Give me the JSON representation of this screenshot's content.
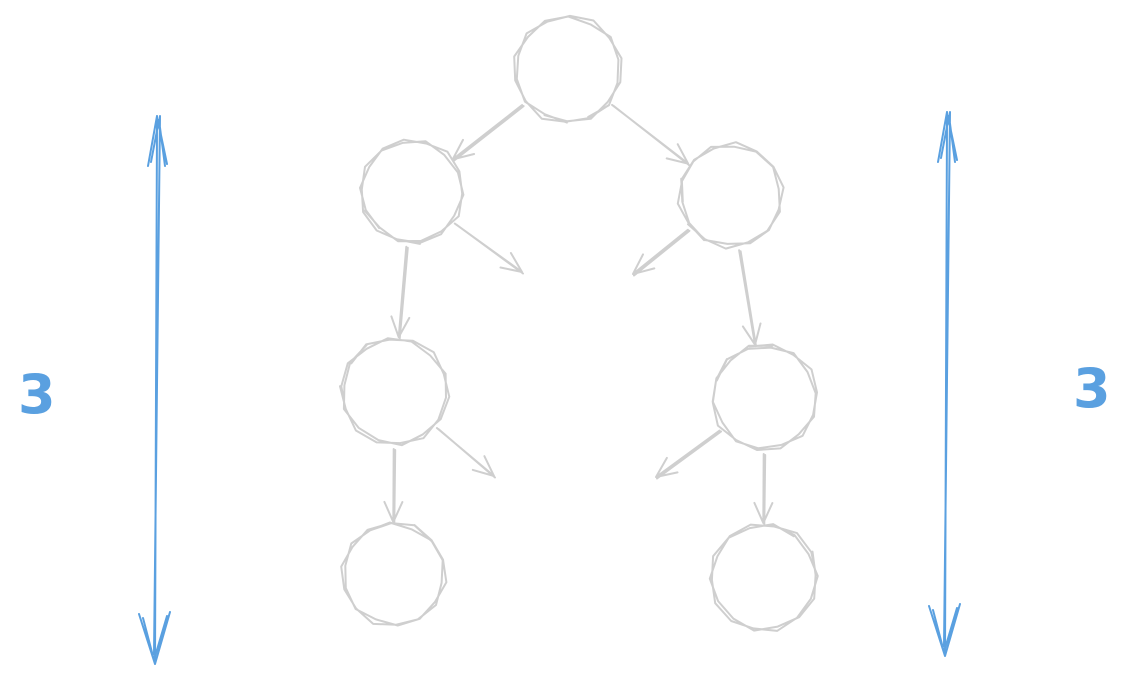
{
  "diagram": {
    "kind": "binary-tree-sketch",
    "style": "hand-drawn",
    "colors": {
      "tree": "#cfcfcf",
      "measure": "#5aa0e0",
      "background": "#ffffff"
    },
    "nodes": [
      {
        "id": "root"
      },
      {
        "id": "left-1"
      },
      {
        "id": "right-1"
      },
      {
        "id": "left-2"
      },
      {
        "id": "right-2"
      },
      {
        "id": "left-3"
      },
      {
        "id": "right-3"
      }
    ],
    "edges": [
      {
        "from": "root",
        "to": "left-1"
      },
      {
        "from": "root",
        "to": "right-1"
      },
      {
        "from": "left-1",
        "to": "left-2"
      },
      {
        "from": "left-2",
        "to": "left-3"
      },
      {
        "from": "right-1",
        "to": "right-2"
      },
      {
        "from": "right-2",
        "to": "right-3"
      }
    ],
    "dangling_edges": [
      {
        "from": "left-1"
      },
      {
        "from": "right-1"
      },
      {
        "from": "left-2"
      },
      {
        "from": "right-2"
      }
    ],
    "depth_left": {
      "label": "3"
    },
    "depth_right": {
      "label": "3"
    }
  }
}
